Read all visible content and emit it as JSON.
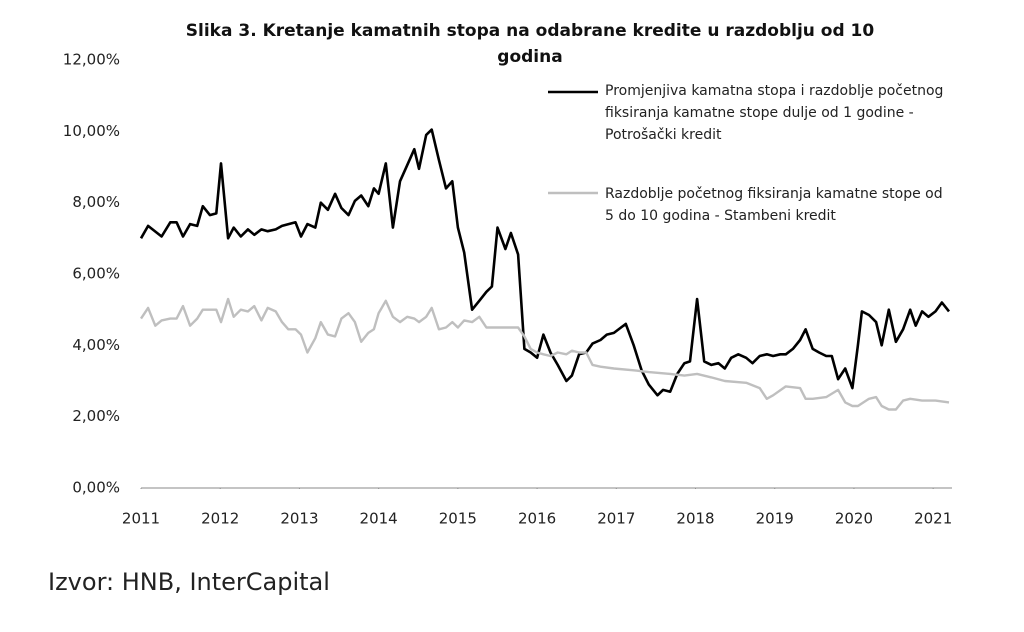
{
  "chart_data": {
    "type": "line",
    "title": "Slika 3. Kretanje kamatnih stopa na odabrane kredite u razdoblju od 10 godina",
    "source": "Izvor: HNB, InterCapital",
    "xlim": [
      2011,
      2021.2
    ],
    "xticks": [
      2011,
      2012,
      2013,
      2014,
      2015,
      2016,
      2017,
      2018,
      2019,
      2020,
      2021
    ],
    "ylim": [
      0,
      12
    ],
    "yticks": [
      {
        "value": 0,
        "label": "0,00%"
      },
      {
        "value": 2,
        "label": "2,00%"
      },
      {
        "value": 4,
        "label": "4,00%"
      },
      {
        "value": 6,
        "label": "6,00%"
      },
      {
        "value": 8,
        "label": "8,00%"
      },
      {
        "value": 10,
        "label": "10,00%"
      },
      {
        "value": 12,
        "label": "12,00%"
      }
    ],
    "grid": false,
    "series": [
      {
        "name": " Promjenjiva kamatna stopa i razdoblje početnog fiksiranja kamatne stope dulje od 1 godine - Potrošački kredit",
        "color": "#000000",
        "x": [
          2011.0,
          2011.09,
          2011.26,
          2011.37,
          2011.45,
          2011.53,
          2011.62,
          2011.71,
          2011.78,
          2011.87,
          2011.95,
          2012.01,
          2012.1,
          2012.17,
          2012.26,
          2012.35,
          2012.43,
          2012.52,
          2012.6,
          2012.7,
          2012.78,
          2012.95,
          2013.02,
          2013.1,
          2013.2,
          2013.27,
          2013.36,
          2013.45,
          2013.53,
          2013.62,
          2013.7,
          2013.78,
          2013.87,
          2013.94,
          2014.0,
          2014.09,
          2014.18,
          2014.27,
          2014.36,
          2014.45,
          2014.51,
          2014.6,
          2014.67,
          2014.76,
          2014.85,
          2014.93,
          2015.0,
          2015.08,
          2015.18,
          2015.27,
          2015.36,
          2015.43,
          2015.5,
          2015.6,
          2015.67,
          2015.76,
          2015.84,
          2015.92,
          2016.0,
          2016.08,
          2016.17,
          2016.26,
          2016.37,
          2016.44,
          2016.53,
          2016.62,
          2016.7,
          2016.8,
          2016.88,
          2016.97,
          2017.06,
          2017.12,
          2017.22,
          2017.32,
          2017.41,
          2017.52,
          2017.59,
          2017.68,
          2017.77,
          2017.86,
          2017.93,
          2018.02,
          2018.11,
          2018.2,
          2018.29,
          2018.37,
          2018.45,
          2018.54,
          2018.64,
          2018.72,
          2018.81,
          2018.9,
          2018.98,
          2019.07,
          2019.14,
          2019.23,
          2019.32,
          2019.39,
          2019.48,
          2019.56,
          2019.65,
          2019.72,
          2019.8,
          2019.89,
          2019.98,
          2020.05,
          2020.1,
          2020.19,
          2020.28,
          2020.35,
          2020.44,
          2020.53,
          2020.62,
          2020.71,
          2020.78,
          2020.86,
          2020.94,
          2021.03,
          2021.11,
          2021.2
        ],
        "values": [
          7.0,
          7.35,
          7.05,
          7.45,
          7.45,
          7.05,
          7.4,
          7.35,
          7.9,
          7.65,
          7.7,
          9.1,
          7.0,
          7.3,
          7.05,
          7.25,
          7.1,
          7.25,
          7.2,
          7.25,
          7.35,
          7.45,
          7.05,
          7.4,
          7.3,
          8.0,
          7.8,
          8.25,
          7.85,
          7.65,
          8.05,
          8.2,
          7.9,
          8.4,
          8.25,
          9.1,
          7.3,
          8.6,
          9.05,
          9.5,
          8.95,
          9.9,
          10.05,
          9.2,
          8.4,
          8.6,
          7.3,
          6.6,
          5.0,
          5.25,
          5.5,
          5.65,
          7.3,
          6.7,
          7.15,
          6.55,
          3.9,
          3.8,
          3.65,
          4.3,
          3.8,
          3.45,
          3.0,
          3.15,
          3.75,
          3.8,
          4.05,
          4.15,
          4.3,
          4.35,
          4.5,
          4.6,
          4.0,
          3.3,
          2.9,
          2.6,
          2.75,
          2.7,
          3.2,
          3.5,
          3.55,
          5.3,
          3.55,
          3.45,
          3.5,
          3.35,
          3.65,
          3.75,
          3.65,
          3.5,
          3.7,
          3.75,
          3.7,
          3.75,
          3.75,
          3.9,
          4.15,
          4.45,
          3.9,
          3.8,
          3.7,
          3.7,
          3.05,
          3.35,
          2.8,
          4.0,
          4.95,
          4.85,
          4.65,
          4.0,
          5.0,
          4.1,
          4.45,
          5.0,
          4.55,
          4.95,
          4.8,
          4.95,
          5.2,
          4.95
        ]
      },
      {
        "name": "Razdoblje početnog fiksiranja kamatne stope od 5 do 10 godina - Stambeni kredit",
        "color": "#bfbfbf",
        "x": [
          2011.0,
          2011.09,
          2011.18,
          2011.26,
          2011.37,
          2011.45,
          2011.53,
          2011.62,
          2011.71,
          2011.78,
          2011.87,
          2011.95,
          2012.01,
          2012.1,
          2012.17,
          2012.26,
          2012.35,
          2012.43,
          2012.52,
          2012.6,
          2012.7,
          2012.78,
          2012.86,
          2012.95,
          2013.02,
          2013.1,
          2013.2,
          2013.27,
          2013.36,
          2013.45,
          2013.53,
          2013.62,
          2013.7,
          2013.78,
          2013.87,
          2013.94,
          2014.0,
          2014.09,
          2014.18,
          2014.27,
          2014.36,
          2014.45,
          2014.51,
          2014.6,
          2014.67,
          2014.76,
          2014.85,
          2014.93,
          2015.0,
          2015.08,
          2015.18,
          2015.27,
          2015.36,
          2015.43,
          2015.6,
          2015.76,
          2015.84,
          2015.92,
          2016.0,
          2016.08,
          2016.17,
          2016.26,
          2016.37,
          2016.44,
          2016.53,
          2016.62,
          2016.7,
          2016.8,
          2016.97,
          2017.22,
          2017.41,
          2017.68,
          2017.86,
          2018.02,
          2018.2,
          2018.37,
          2018.64,
          2018.81,
          2018.9,
          2018.98,
          2019.14,
          2019.32,
          2019.39,
          2019.48,
          2019.65,
          2019.8,
          2019.89,
          2019.98,
          2020.05,
          2020.19,
          2020.28,
          2020.35,
          2020.44,
          2020.53,
          2020.62,
          2020.71,
          2020.86,
          2021.03,
          2021.2
        ],
        "values": [
          4.75,
          5.05,
          4.55,
          4.7,
          4.75,
          4.75,
          5.1,
          4.55,
          4.75,
          5.0,
          5.0,
          5.0,
          4.65,
          5.3,
          4.8,
          5.0,
          4.95,
          5.1,
          4.7,
          5.05,
          4.95,
          4.65,
          4.45,
          4.45,
          4.3,
          3.8,
          4.2,
          4.65,
          4.3,
          4.25,
          4.75,
          4.9,
          4.65,
          4.1,
          4.35,
          4.45,
          4.9,
          5.25,
          4.8,
          4.65,
          4.8,
          4.75,
          4.65,
          4.8,
          5.05,
          4.45,
          4.5,
          4.65,
          4.5,
          4.7,
          4.65,
          4.8,
          4.5,
          4.5,
          4.5,
          4.5,
          4.25,
          3.9,
          3.8,
          3.75,
          3.7,
          3.8,
          3.75,
          3.85,
          3.8,
          3.8,
          3.45,
          3.4,
          3.35,
          3.3,
          3.25,
          3.2,
          3.15,
          3.2,
          3.1,
          3.0,
          2.95,
          2.8,
          2.5,
          2.6,
          2.85,
          2.8,
          2.5,
          2.5,
          2.55,
          2.75,
          2.4,
          2.3,
          2.3,
          2.5,
          2.55,
          2.3,
          2.2,
          2.2,
          2.45,
          2.5,
          2.45,
          2.45,
          2.4
        ]
      }
    ]
  }
}
